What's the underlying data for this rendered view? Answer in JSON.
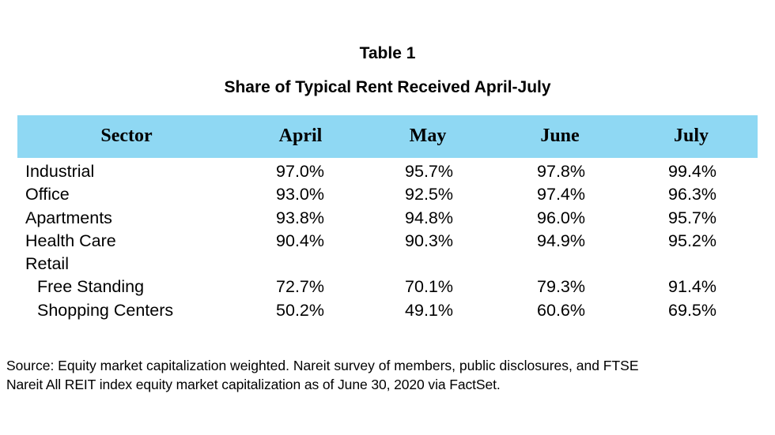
{
  "table": {
    "title": "Table 1",
    "subtitle": "Share of Typical Rent Received April-July",
    "columns": [
      "Sector",
      "April",
      "May",
      "June",
      "July"
    ],
    "rows": [
      {
        "label": "Industrial",
        "april": "97.0%",
        "may": "95.7%",
        "june": "97.8%",
        "july": "99.4%"
      },
      {
        "label": "Office",
        "april": "93.0%",
        "may": "92.5%",
        "june": "97.4%",
        "july": "96.3%"
      },
      {
        "label": "Apartments",
        "april": "93.8%",
        "may": "94.8%",
        "june": "96.0%",
        "july": "95.7%"
      },
      {
        "label": "Health Care",
        "april": "90.4%",
        "may": "90.3%",
        "june": "94.9%",
        "july": "95.2%"
      },
      {
        "label": "Retail",
        "april": "",
        "may": "",
        "june": "",
        "july": ""
      },
      {
        "label": "Free Standing",
        "april": "72.7%",
        "may": "70.1%",
        "june": "79.3%",
        "july": "91.4%"
      },
      {
        "label": "Shopping Centers",
        "april": "50.2%",
        "may": "49.1%",
        "june": "60.6%",
        "july": "69.5%"
      }
    ],
    "header_color": "#8fd8f3"
  },
  "source": {
    "line1": "Source: Equity market capitalization weighted. Nareit survey of members, public disclosures, and FTSE",
    "line2": "Nareit All REIT index equity market capitalization as of June 30, 2020 via FactSet."
  }
}
